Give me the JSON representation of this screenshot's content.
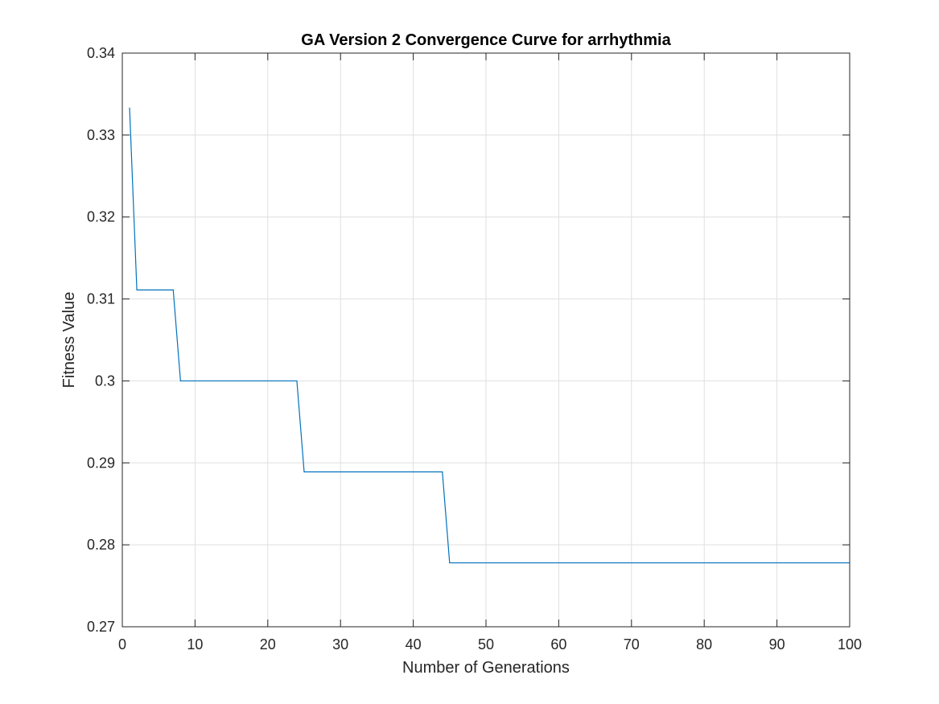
{
  "chart_data": {
    "type": "line",
    "title": "GA Version 2 Convergence Curve for arrhythmia",
    "xlabel": "Number of Generations",
    "ylabel": "Fitness Value",
    "xlim": [
      0,
      100
    ],
    "ylim": [
      0.27,
      0.34
    ],
    "xticks": [
      0,
      10,
      20,
      30,
      40,
      50,
      60,
      70,
      80,
      90,
      100
    ],
    "yticks": [
      0.27,
      0.28,
      0.29,
      0.3,
      0.31,
      0.32,
      0.33,
      0.34
    ],
    "xtick_labels": [
      "0",
      "10",
      "20",
      "30",
      "40",
      "50",
      "60",
      "70",
      "80",
      "90",
      "100"
    ],
    "ytick_labels": [
      "0.27",
      "0.28",
      "0.29",
      "0.3",
      "0.31",
      "0.32",
      "0.33",
      "0.34"
    ],
    "grid": true,
    "box": true,
    "series": [
      {
        "color": "#0072BD",
        "x": [
          1,
          2,
          7,
          8,
          24,
          25,
          44,
          45,
          100
        ],
        "y": [
          0.3333,
          0.3111,
          0.3111,
          0.3,
          0.3,
          0.2889,
          0.2889,
          0.2778,
          0.2778
        ]
      }
    ]
  }
}
